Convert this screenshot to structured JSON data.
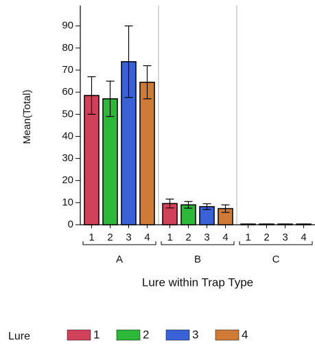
{
  "chart_data": {
    "type": "bar",
    "y_label": "Mean(Total)",
    "x_label": "Lure within Trap Type",
    "legend_title": "Lure",
    "categories": [
      "A",
      "B",
      "C"
    ],
    "series": [
      {
        "name": "1",
        "color": "#d0415a",
        "values": [
          58.5,
          9.6,
          0.3
        ],
        "errors": [
          8.5,
          2,
          0
        ]
      },
      {
        "name": "2",
        "color": "#2db83a",
        "values": [
          57,
          9,
          0.3
        ],
        "errors": [
          8,
          1.5,
          0
        ]
      },
      {
        "name": "3",
        "color": "#3a62d6",
        "values": [
          73.8,
          8.2,
          0.3
        ],
        "errors": [
          16.2,
          1.3,
          0
        ]
      },
      {
        "name": "4",
        "color": "#d07a38",
        "values": [
          64.5,
          7.3,
          0.3
        ],
        "errors": [
          7.5,
          1.7,
          0
        ]
      }
    ],
    "ylim": [
      0,
      98
    ],
    "yticks": [
      0,
      10,
      20,
      30,
      40,
      50,
      60,
      70,
      80,
      90
    ]
  }
}
